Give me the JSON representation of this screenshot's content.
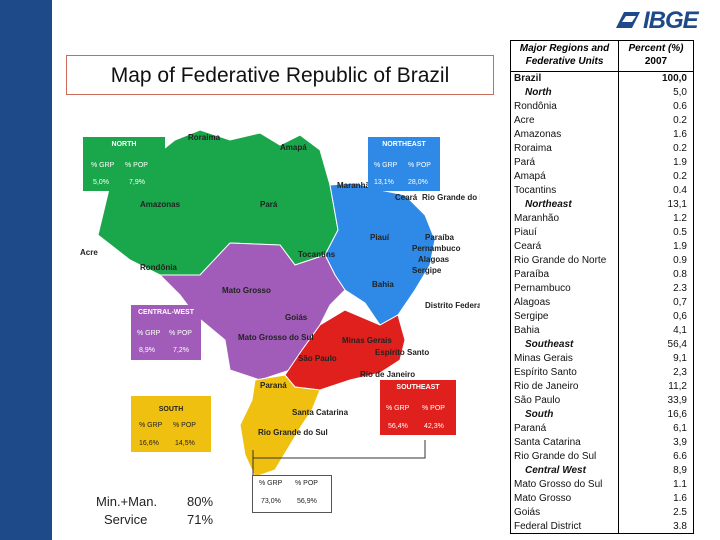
{
  "logo": {
    "text": "IBGE"
  },
  "title": "Map of Federative Republic of Brazil",
  "map_labels": {
    "roraima": "Roraima",
    "amapa": "Amapá",
    "amazonas": "Amazonas",
    "para": "Pará",
    "maranhao": "Maranhão",
    "ceara": "Ceará",
    "rgn": "Rio Grande do Norte",
    "acre": "Acre",
    "rondonia": "Rondônia",
    "tocantins": "Tocantins",
    "piaui": "Piauí",
    "paraiba": "Paraíba",
    "pernambuco": "Pernambuco",
    "alagoas": "Alagoas",
    "sergipe": "Sergipe",
    "bahia": "Bahia",
    "mato_grosso": "Mato Grosso",
    "goias": "Goiás",
    "distrito_federal": "Distrito Federal",
    "mgs": "Mato Grosso do Sul",
    "minas": "Minas Gerais",
    "espirito": "Espírito Santo",
    "sao_paulo": "São Paulo",
    "rio": "Rio de Janeiro",
    "parana": "Paraná",
    "santa_catarina": "Santa Catarina",
    "rgs": "Rio Grande do Sul"
  },
  "region_boxes": {
    "north": {
      "title": "NORTH",
      "grp_label": "% GRP",
      "pop_label": "% POP",
      "grp": "5,0%",
      "pop": "7,9%",
      "color": "#1aa64a"
    },
    "northeast": {
      "title": "NORTHEAST",
      "grp_label": "% GRP",
      "pop_label": "% POP",
      "grp": "13,1%",
      "pop": "28,0%",
      "color": "#2e8ae6"
    },
    "central_west": {
      "title": "CENTRAL-WEST",
      "grp_label": "% GRP",
      "pop_label": "% POP",
      "grp": "8,9%",
      "pop": "7,2%",
      "color": "#a05cb8"
    },
    "southeast": {
      "title": "SOUTHEAST",
      "grp_label": "% GRP",
      "pop_label": "% POP",
      "grp": "56,4%",
      "pop": "42,3%",
      "color": "#e0201c"
    },
    "south": {
      "title": "SOUTH",
      "grp_label": "% GRP",
      "pop_label": "% POP",
      "grp": "16,6%",
      "pop": "14,5%",
      "color": "#f0c010"
    },
    "bottom": {
      "grp_label": "% GRP",
      "pop_label": "% POP",
      "grp": "73,0%",
      "pop": "56,9%"
    }
  },
  "footer": {
    "label1": "Min.+Man.",
    "label2": "Service",
    "v1": "80%",
    "v2": "71%"
  },
  "table": {
    "header_left": [
      "Major Regions and",
      "Federative Units"
    ],
    "header_right": [
      "Percent (%)",
      "2007"
    ],
    "rows": [
      {
        "name": "Brazil",
        "value": "100,0",
        "style": "bold"
      },
      {
        "name": "North",
        "value": "5,0",
        "style": "italic"
      },
      {
        "name": "Rondônia",
        "value": "0.6",
        "style": ""
      },
      {
        "name": "Acre",
        "value": "0.2",
        "style": ""
      },
      {
        "name": "Amazonas",
        "value": "1.6",
        "style": ""
      },
      {
        "name": "Roraima",
        "value": "0.2",
        "style": ""
      },
      {
        "name": "Pará",
        "value": "1.9",
        "style": ""
      },
      {
        "name": "Amapá",
        "value": "0.2",
        "style": ""
      },
      {
        "name": "Tocantins",
        "value": "0.4",
        "style": ""
      },
      {
        "name": "Northeast",
        "value": "13,1",
        "style": "italic"
      },
      {
        "name": "Maranhão",
        "value": "1.2",
        "style": ""
      },
      {
        "name": "Piauí",
        "value": "0.5",
        "style": ""
      },
      {
        "name": "Ceará",
        "value": "1.9",
        "style": ""
      },
      {
        "name": "Rio Grande do Norte",
        "value": "0.9",
        "style": ""
      },
      {
        "name": "Paraíba",
        "value": "0.8",
        "style": ""
      },
      {
        "name": "Pernambuco",
        "value": "2.3",
        "style": ""
      },
      {
        "name": "Alagoas",
        "value": "0,7",
        "style": ""
      },
      {
        "name": "Sergipe",
        "value": "0,6",
        "style": ""
      },
      {
        "name": "Bahia",
        "value": "4,1",
        "style": ""
      },
      {
        "name": "Southeast",
        "value": "56,4",
        "style": "italic"
      },
      {
        "name": "Minas Gerais",
        "value": "9,1",
        "style": ""
      },
      {
        "name": "Espírito Santo",
        "value": "2,3",
        "style": ""
      },
      {
        "name": "Rio de Janeiro",
        "value": "11,2",
        "style": ""
      },
      {
        "name": "São Paulo",
        "value": "33,9",
        "style": ""
      },
      {
        "name": "South",
        "value": "16,6",
        "style": "italic"
      },
      {
        "name": "Paraná",
        "value": "6,1",
        "style": ""
      },
      {
        "name": "Santa Catarina",
        "value": "3,9",
        "style": ""
      },
      {
        "name": "Rio Grande do Sul",
        "value": "6.6",
        "style": ""
      },
      {
        "name": "Central West",
        "value": "8,9",
        "style": "italic"
      },
      {
        "name": "Mato Grosso do Sul",
        "value": "1.1",
        "style": ""
      },
      {
        "name": "Mato Grosso",
        "value": "1.6",
        "style": ""
      },
      {
        "name": "Goiás",
        "value": "2.5",
        "style": ""
      },
      {
        "name": "Federal District",
        "value": "3.8",
        "style": ""
      }
    ]
  }
}
